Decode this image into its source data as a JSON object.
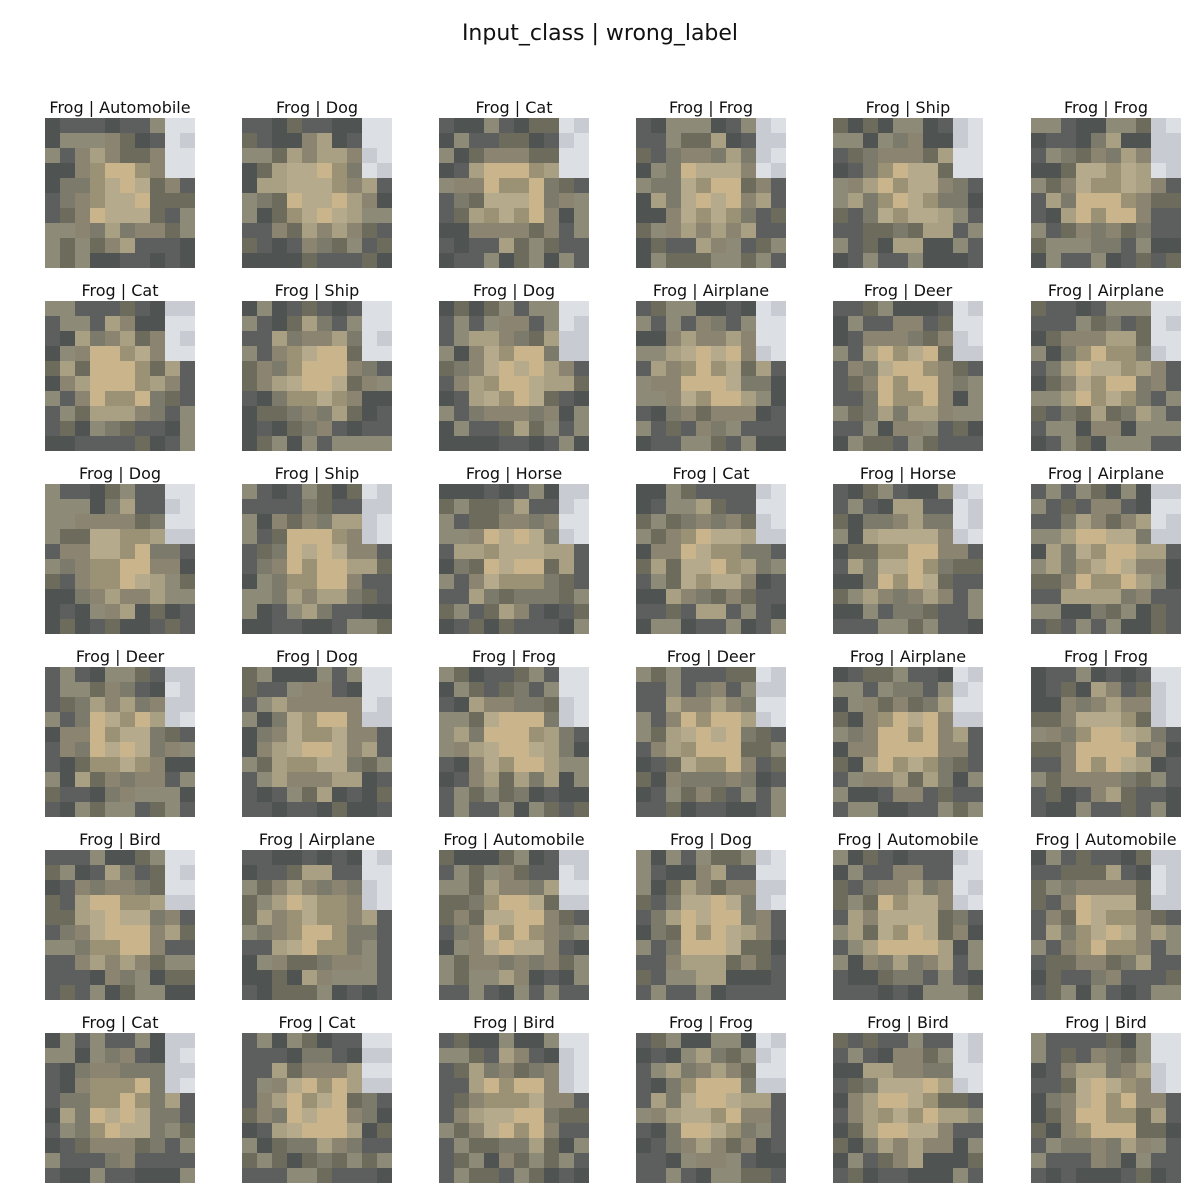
{
  "figure": {
    "title": "Input_class | wrong_label"
  },
  "grid": {
    "rows": 6,
    "cols": 6,
    "image_description": "pixelated low-resolution frog photo (same input image repeated in every cell)",
    "palette": [
      "#8a8470",
      "#9b9276",
      "#6d6b5c",
      "#b5ab8c",
      "#c9b48b",
      "#5c5f5e",
      "#7c7a6a",
      "#a9a083",
      "#4f5452",
      "#dcdfe3",
      "#c8ccd2",
      "#8e8a78"
    ],
    "cells": [
      {
        "label": "Frog | Automobile"
      },
      {
        "label": "Frog | Dog"
      },
      {
        "label": "Frog | Cat"
      },
      {
        "label": "Frog | Frog"
      },
      {
        "label": "Frog | Ship"
      },
      {
        "label": "Frog | Frog"
      },
      {
        "label": "Frog | Cat"
      },
      {
        "label": "Frog | Ship"
      },
      {
        "label": "Frog | Dog"
      },
      {
        "label": "Frog | Airplane"
      },
      {
        "label": "Frog | Deer"
      },
      {
        "label": "Frog | Airplane"
      },
      {
        "label": "Frog | Dog"
      },
      {
        "label": "Frog | Ship"
      },
      {
        "label": "Frog | Horse"
      },
      {
        "label": "Frog | Cat"
      },
      {
        "label": "Frog | Horse"
      },
      {
        "label": "Frog | Airplane"
      },
      {
        "label": "Frog | Deer"
      },
      {
        "label": "Frog | Dog"
      },
      {
        "label": "Frog | Frog"
      },
      {
        "label": "Frog | Deer"
      },
      {
        "label": "Frog | Airplane"
      },
      {
        "label": "Frog | Frog"
      },
      {
        "label": "Frog | Bird"
      },
      {
        "label": "Frog | Airplane"
      },
      {
        "label": "Frog | Automobile"
      },
      {
        "label": "Frog | Dog"
      },
      {
        "label": "Frog | Automobile"
      },
      {
        "label": "Frog | Automobile"
      },
      {
        "label": "Frog | Cat"
      },
      {
        "label": "Frog | Cat"
      },
      {
        "label": "Frog | Bird"
      },
      {
        "label": "Frog | Frog"
      },
      {
        "label": "Frog | Bird"
      },
      {
        "label": "Frog | Bird"
      }
    ]
  }
}
